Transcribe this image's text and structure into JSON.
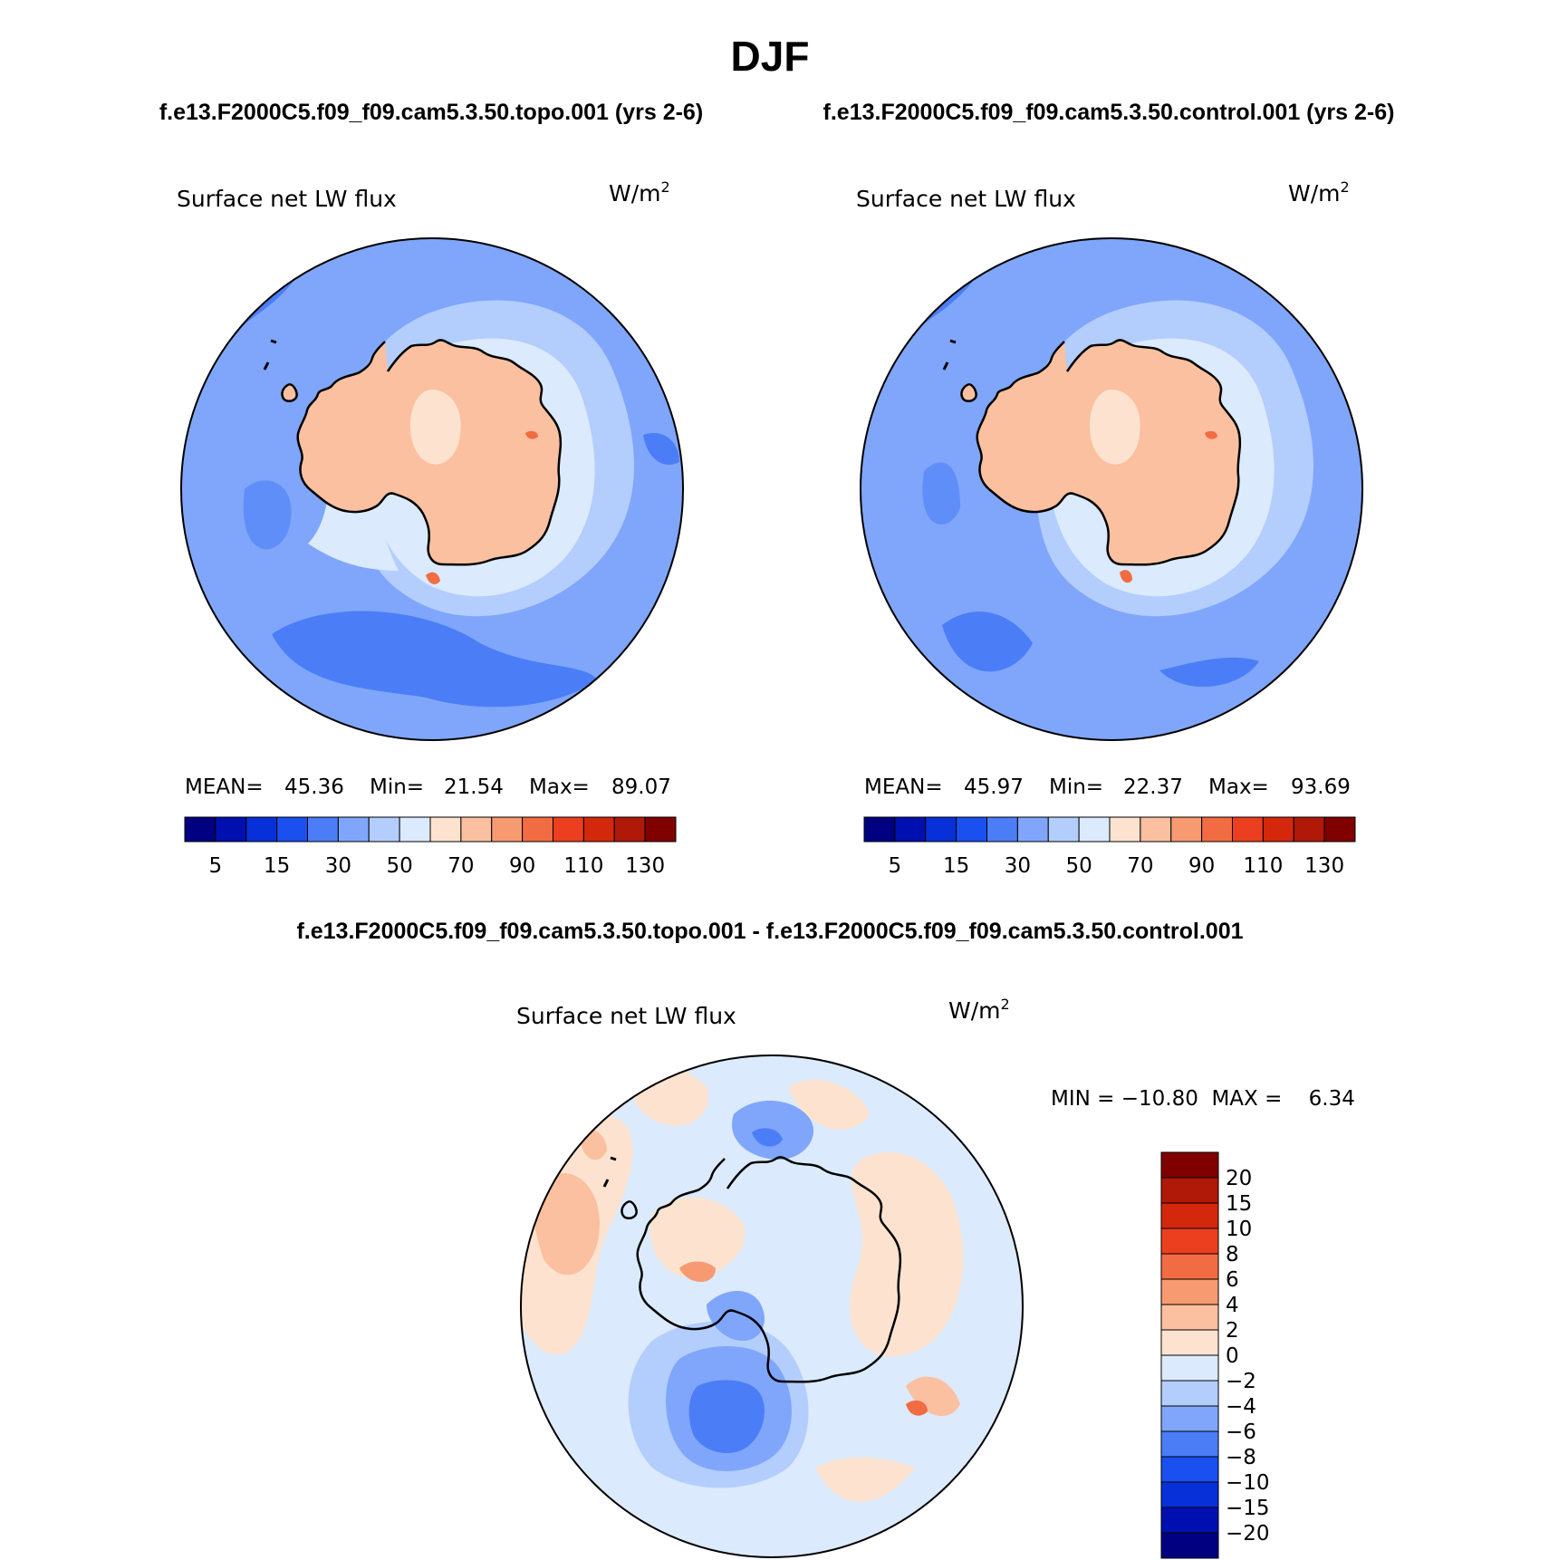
{
  "title": "DJF",
  "panels": [
    {
      "case_title": "f.e13.F2000C5.f09_f09.cam5.3.50.topo.001 (yrs 2-6)",
      "variable": "Surface net LW flux",
      "units": "W/m",
      "units_exp": "2",
      "stats": {
        "mean_label": "MEAN=",
        "mean": "45.36",
        "min_label": "Min=",
        "min": "21.54",
        "max_label": "Max=",
        "max": "89.07"
      },
      "colorbar_labels": [
        "5",
        "15",
        "30",
        "50",
        "70",
        "90",
        "110",
        "130"
      ]
    },
    {
      "case_title": "f.e13.F2000C5.f09_f09.cam5.3.50.control.001 (yrs 2-6)",
      "variable": "Surface net LW flux",
      "units": "W/m",
      "units_exp": "2",
      "stats": {
        "mean_label": "MEAN=",
        "mean": "45.97",
        "min_label": "Min=",
        "min": "22.37",
        "max_label": "Max=",
        "max": "93.69"
      },
      "colorbar_labels": [
        "5",
        "15",
        "30",
        "50",
        "70",
        "90",
        "110",
        "130"
      ]
    }
  ],
  "difference": {
    "title": "f.e13.F2000C5.f09_f09.cam5.3.50.topo.001 - f.e13.F2000C5.f09_f09.cam5.3.50.control.001",
    "variable": "Surface net LW flux",
    "units": "W/m",
    "units_exp": "2",
    "minmax": "MIN = −10.80  MAX =    6.34",
    "colorbar_labels": [
      "20",
      "15",
      "10",
      "8",
      "6",
      "4",
      "2",
      "0",
      "−2",
      "−4",
      "−6",
      "−8",
      "−10",
      "−15",
      "−20"
    ]
  },
  "colors": {
    "abs_scale": [
      "#000080",
      "#0010b0",
      "#0830d8",
      "#1a4ff0",
      "#4b7ef6",
      "#7fa6fa",
      "#b3cdfd",
      "#dbeafc",
      "#fde3cf",
      "#fbc0a0",
      "#f79a72",
      "#f26c43",
      "#ec3f1f",
      "#d4280c",
      "#b01808",
      "#800000"
    ],
    "diff_scale": [
      "#800000",
      "#b01808",
      "#d4280c",
      "#ec3f1f",
      "#f26c43",
      "#f79a72",
      "#fbc0a0",
      "#fde3cf",
      "#dbeafc",
      "#b3cdfd",
      "#7fa6fa",
      "#4b7ef6",
      "#1a4ff0",
      "#0830d8",
      "#0010b0",
      "#000080"
    ]
  }
}
